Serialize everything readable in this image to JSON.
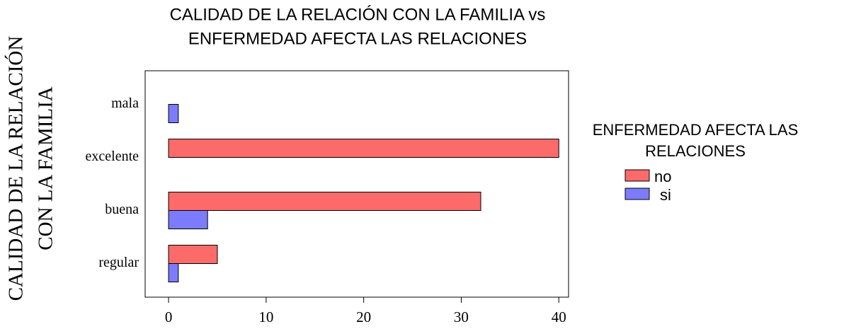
{
  "chart_data": {
    "type": "hbar",
    "title": [
      "CALIDAD DE LA RELACIÓN CON LA FAMILIA vs",
      "ENFERMEDAD AFECTA LAS RELACIONES"
    ],
    "ylabel": [
      "CALIDAD DE LA RELACIÓN",
      "CON LA FAMILIA"
    ],
    "legend_title": [
      "ENFERMEDAD AFECTA LAS",
      "RELACIONES"
    ],
    "categories": [
      "mala",
      "excelente",
      "buena",
      "regular"
    ],
    "series": [
      {
        "name": "no",
        "color": "#fc6a6a",
        "values": [
          0,
          40,
          32,
          5
        ]
      },
      {
        "name": "si",
        "color": "#7b7bfc",
        "values": [
          1,
          0,
          4,
          1
        ]
      }
    ],
    "xlim": [
      -2.4,
      41
    ],
    "xticks": [
      0,
      10,
      20,
      30,
      40
    ],
    "legend": "right"
  }
}
